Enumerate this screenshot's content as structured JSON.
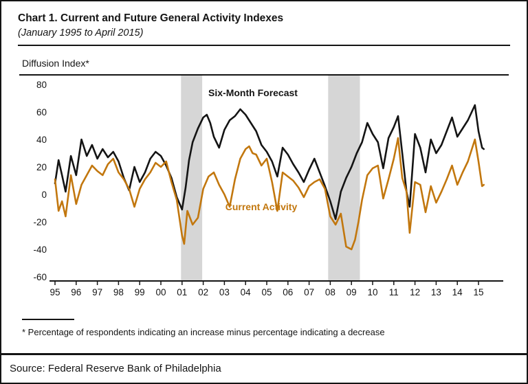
{
  "chart": {
    "title": "Chart 1. Current and Future General Activity Indexes",
    "subtitle": "(January 1995 to April 2015)",
    "y_axis_title": "Diffusion Index*",
    "series_labels": {
      "forecast": "Six-Month Forecast",
      "current": "Current Activity"
    },
    "footnote": "* Percentage of respondents indicating an increase minus percentage indicating a decrease",
    "source": "Source: Federal Reserve Bank of Philadelphia",
    "colors": {
      "forecast": "#141414",
      "current": "#c2770e",
      "recession_band": "#d6d6d6"
    }
  },
  "chart_data": {
    "type": "line",
    "title": "Current and Future General Activity Indexes",
    "x_unit": "year (Jan 1995 - Apr 2015)",
    "xlim": [
      1994.8,
      2015.5
    ],
    "ylim": [
      -60,
      80
    ],
    "yticks": [
      80,
      60,
      40,
      20,
      0,
      -20,
      -40,
      -60
    ],
    "xtick_values": [
      1995,
      1996,
      1997,
      1998,
      1999,
      2000,
      2001,
      2002,
      2003,
      2004,
      2005,
      2006,
      2007,
      2008,
      2009,
      2010,
      2011,
      2012,
      2013,
      2014,
      2015
    ],
    "xtick_labels": [
      "95",
      "96",
      "97",
      "98",
      "99",
      "00",
      "01",
      "02",
      "03",
      "04",
      "05",
      "06",
      "07",
      "08",
      "09",
      "10",
      "11",
      "12",
      "13",
      "14",
      "15"
    ],
    "grid": false,
    "legend": "in-plot text labels",
    "recession_bands": [
      [
        2000.95,
        2001.95
      ],
      [
        2007.9,
        2009.4
      ]
    ],
    "series": [
      {
        "id": "forecast",
        "name": "Six-Month Forecast",
        "color": "#141414",
        "points": [
          [
            1995.0,
            8
          ],
          [
            1995.17,
            25
          ],
          [
            1995.33,
            14
          ],
          [
            1995.5,
            2
          ],
          [
            1995.75,
            28
          ],
          [
            1996.0,
            14
          ],
          [
            1996.25,
            40
          ],
          [
            1996.5,
            28
          ],
          [
            1996.75,
            36
          ],
          [
            1997.0,
            26
          ],
          [
            1997.25,
            33
          ],
          [
            1997.5,
            27
          ],
          [
            1997.75,
            31
          ],
          [
            1998.0,
            24
          ],
          [
            1998.25,
            12
          ],
          [
            1998.5,
            3
          ],
          [
            1998.75,
            20
          ],
          [
            1999.0,
            9
          ],
          [
            1999.25,
            16
          ],
          [
            1999.5,
            26
          ],
          [
            1999.75,
            31
          ],
          [
            2000.0,
            28
          ],
          [
            2000.25,
            21
          ],
          [
            2000.5,
            12
          ],
          [
            2000.75,
            -2
          ],
          [
            2001.0,
            -11
          ],
          [
            2001.17,
            5
          ],
          [
            2001.33,
            25
          ],
          [
            2001.5,
            38
          ],
          [
            2001.75,
            48
          ],
          [
            2002.0,
            56
          ],
          [
            2002.17,
            58
          ],
          [
            2002.33,
            52
          ],
          [
            2002.5,
            42
          ],
          [
            2002.75,
            34
          ],
          [
            2003.0,
            47
          ],
          [
            2003.25,
            54
          ],
          [
            2003.5,
            57
          ],
          [
            2003.75,
            62
          ],
          [
            2004.0,
            58
          ],
          [
            2004.25,
            52
          ],
          [
            2004.5,
            46
          ],
          [
            2004.75,
            36
          ],
          [
            2005.0,
            31
          ],
          [
            2005.25,
            24
          ],
          [
            2005.5,
            13
          ],
          [
            2005.75,
            34
          ],
          [
            2006.0,
            29
          ],
          [
            2006.25,
            22
          ],
          [
            2006.5,
            16
          ],
          [
            2006.75,
            9
          ],
          [
            2007.0,
            18
          ],
          [
            2007.25,
            26
          ],
          [
            2007.5,
            16
          ],
          [
            2007.75,
            6
          ],
          [
            2008.0,
            -5
          ],
          [
            2008.25,
            -18
          ],
          [
            2008.5,
            2
          ],
          [
            2008.75,
            12
          ],
          [
            2009.0,
            20
          ],
          [
            2009.25,
            30
          ],
          [
            2009.5,
            38
          ],
          [
            2009.75,
            52
          ],
          [
            2010.0,
            44
          ],
          [
            2010.25,
            38
          ],
          [
            2010.5,
            19
          ],
          [
            2010.75,
            41
          ],
          [
            2011.0,
            49
          ],
          [
            2011.2,
            57
          ],
          [
            2011.4,
            30
          ],
          [
            2011.6,
            2
          ],
          [
            2011.75,
            -9
          ],
          [
            2012.0,
            44
          ],
          [
            2012.25,
            34
          ],
          [
            2012.5,
            16
          ],
          [
            2012.75,
            40
          ],
          [
            2013.0,
            30
          ],
          [
            2013.25,
            36
          ],
          [
            2013.5,
            46
          ],
          [
            2013.75,
            56
          ],
          [
            2014.0,
            42
          ],
          [
            2014.25,
            48
          ],
          [
            2014.5,
            54
          ],
          [
            2014.83,
            65
          ],
          [
            2015.0,
            46
          ],
          [
            2015.17,
            34
          ],
          [
            2015.25,
            33
          ]
        ]
      },
      {
        "id": "current",
        "name": "Current Activity",
        "color": "#c2770e",
        "points": [
          [
            1995.0,
            11
          ],
          [
            1995.17,
            -12
          ],
          [
            1995.33,
            -5
          ],
          [
            1995.5,
            -16
          ],
          [
            1995.75,
            14
          ],
          [
            1996.0,
            -7
          ],
          [
            1996.25,
            7
          ],
          [
            1996.5,
            14
          ],
          [
            1996.75,
            21
          ],
          [
            1997.0,
            17
          ],
          [
            1997.25,
            14
          ],
          [
            1997.5,
            22
          ],
          [
            1997.75,
            26
          ],
          [
            1998.0,
            16
          ],
          [
            1998.25,
            11
          ],
          [
            1998.5,
            4
          ],
          [
            1998.75,
            -9
          ],
          [
            1999.0,
            4
          ],
          [
            1999.25,
            11
          ],
          [
            1999.5,
            16
          ],
          [
            1999.75,
            23
          ],
          [
            2000.0,
            20
          ],
          [
            2000.25,
            24
          ],
          [
            2000.5,
            9
          ],
          [
            2000.75,
            -4
          ],
          [
            2001.0,
            -30
          ],
          [
            2001.1,
            -36
          ],
          [
            2001.25,
            -12
          ],
          [
            2001.5,
            -22
          ],
          [
            2001.75,
            -17
          ],
          [
            2002.0,
            4
          ],
          [
            2002.25,
            13
          ],
          [
            2002.5,
            16
          ],
          [
            2002.75,
            7
          ],
          [
            2003.0,
            0
          ],
          [
            2003.25,
            -9
          ],
          [
            2003.5,
            11
          ],
          [
            2003.75,
            26
          ],
          [
            2004.0,
            33
          ],
          [
            2004.17,
            35
          ],
          [
            2004.33,
            30
          ],
          [
            2004.5,
            29
          ],
          [
            2004.75,
            21
          ],
          [
            2005.0,
            26
          ],
          [
            2005.25,
            9
          ],
          [
            2005.5,
            -12
          ],
          [
            2005.75,
            16
          ],
          [
            2006.0,
            13
          ],
          [
            2006.25,
            10
          ],
          [
            2006.5,
            5
          ],
          [
            2006.75,
            -2
          ],
          [
            2007.0,
            6
          ],
          [
            2007.25,
            9
          ],
          [
            2007.5,
            11
          ],
          [
            2007.75,
            4
          ],
          [
            2008.0,
            -16
          ],
          [
            2008.25,
            -22
          ],
          [
            2008.5,
            -14
          ],
          [
            2008.75,
            -38
          ],
          [
            2009.0,
            -40
          ],
          [
            2009.17,
            -33
          ],
          [
            2009.33,
            -20
          ],
          [
            2009.5,
            -4
          ],
          [
            2009.75,
            14
          ],
          [
            2010.0,
            19
          ],
          [
            2010.25,
            21
          ],
          [
            2010.5,
            -3
          ],
          [
            2010.75,
            11
          ],
          [
            2011.0,
            26
          ],
          [
            2011.2,
            41
          ],
          [
            2011.4,
            12
          ],
          [
            2011.6,
            2
          ],
          [
            2011.75,
            -28
          ],
          [
            2012.0,
            9
          ],
          [
            2012.25,
            7
          ],
          [
            2012.5,
            -13
          ],
          [
            2012.75,
            6
          ],
          [
            2013.0,
            -6
          ],
          [
            2013.25,
            2
          ],
          [
            2013.5,
            11
          ],
          [
            2013.75,
            21
          ],
          [
            2014.0,
            7
          ],
          [
            2014.25,
            16
          ],
          [
            2014.5,
            24
          ],
          [
            2014.83,
            40
          ],
          [
            2015.0,
            24
          ],
          [
            2015.17,
            6
          ],
          [
            2015.25,
            7
          ]
        ]
      }
    ]
  }
}
